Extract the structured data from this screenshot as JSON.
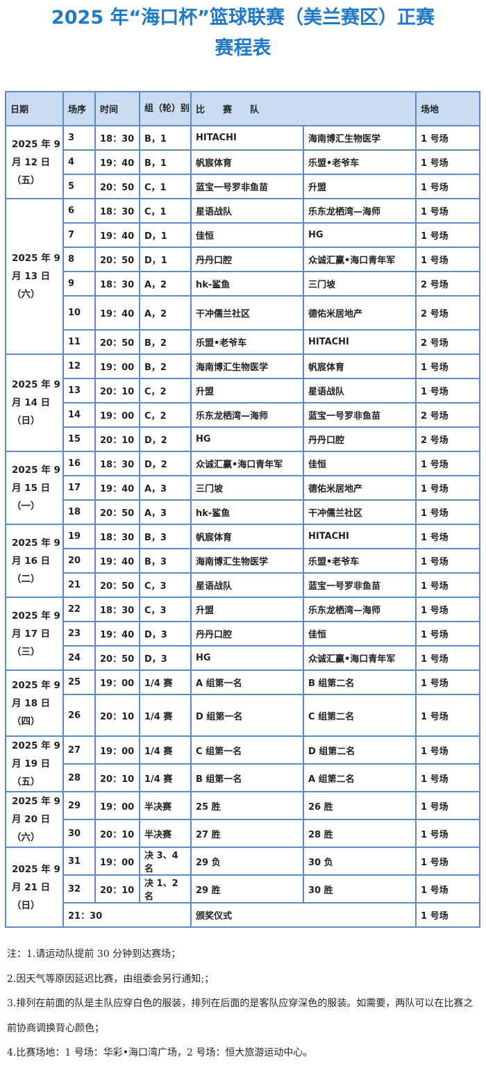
{
  "title": {
    "line1": "2025 年“海口杯”篮球联赛（美兰赛区）正赛",
    "line2": "赛程表"
  },
  "headers": {
    "date": "日期",
    "seq": "场序",
    "time": "时间",
    "group": "组（轮）别",
    "teams": "比　　赛　　队",
    "venue": "场地"
  },
  "days": [
    {
      "date": [
        "2025 年 9",
        "月 12 日",
        "（五）"
      ],
      "games": [
        [
          "3",
          "18：30",
          "B，1",
          "HITACHI",
          "海南博汇生物医学",
          "1 号场"
        ],
        [
          "4",
          "19：40",
          "B，1",
          "帆宸体育",
          "乐盟•老爷车",
          "1 号场"
        ],
        [
          "5",
          "20：50",
          "C，1",
          "蓝宝一号罗非鱼苗",
          "升盟",
          "1 号场"
        ]
      ]
    },
    {
      "date": [
        "2025 年 9",
        "月 13 日",
        "（六）"
      ],
      "games": [
        [
          "6",
          "18：30",
          "C，1",
          "星语战队",
          "乐东龙栖湾—海师",
          "1 号场"
        ],
        [
          "7",
          "19：40",
          "D，1",
          "佳恒",
          "HG",
          "1 号场"
        ],
        [
          "8",
          "20：50",
          "D，1",
          "丹丹口腔",
          "众诚汇赢•海口青年军",
          "1 号场"
        ],
        [
          "9",
          "18：30",
          "A，2",
          "hk-鲨鱼",
          "三门坡",
          "2 号场"
        ],
        [
          "10",
          "19：40",
          "A，2",
          "干冲儒兰社区",
          "德佑米居地产",
          "2 号场"
        ],
        [
          "11",
          "20：50",
          "B，2",
          "乐盟•老爷车",
          "HITACHI",
          "2 号场"
        ]
      ]
    },
    {
      "date": [
        "2025 年 9",
        "月 14 日",
        "（日）"
      ],
      "games": [
        [
          "12",
          "19：00",
          "B，2",
          "海南博汇生物医学",
          "帆宸体育",
          "1 号场"
        ],
        [
          "13",
          "20：10",
          "C，2",
          "升盟",
          "星语战队",
          "1 号场"
        ],
        [
          "14",
          "19：00",
          "C，2",
          "乐东龙栖湾—海师",
          "蓝宝一号罗非鱼苗",
          "2 号场"
        ],
        [
          "15",
          "20：10",
          "D，2",
          "HG",
          "丹丹口腔",
          "2 号场"
        ]
      ]
    },
    {
      "date": [
        "2025 年 9",
        "月 15 日",
        "（一）"
      ],
      "games": [
        [
          "16",
          "18：30",
          "D，2",
          "众诚汇赢•海口青年军",
          "佳恒",
          "1 号场"
        ],
        [
          "17",
          "19：40",
          "A，3",
          "三门坡",
          "德佑米居地产",
          "1 号场"
        ],
        [
          "18",
          "20：50",
          "A，3",
          "hk-鲨鱼",
          "干冲儒兰社区",
          "1 号场"
        ]
      ]
    },
    {
      "date": [
        "2025 年 9",
        "月 16 日",
        "（二）"
      ],
      "games": [
        [
          "19",
          "18：30",
          "B，3",
          "帆宸体育",
          "HITACHI",
          "1 号场"
        ],
        [
          "20",
          "19：40",
          "B，3",
          "海南博汇生物医学",
          "乐盟•老爷车",
          "1 号场"
        ],
        [
          "21",
          "20：50",
          "C，3",
          "星语战队",
          "蓝宝一号罗非鱼苗",
          "1 号场"
        ]
      ]
    },
    {
      "date": [
        "2025 年 9",
        "月 17 日",
        "（三）"
      ],
      "games": [
        [
          "22",
          "18：30",
          "C，3",
          "升盟",
          "乐东龙栖湾—海师",
          "1 号场"
        ],
        [
          "23",
          "19：40",
          "D，3",
          "丹丹口腔",
          "佳恒",
          "1 号场"
        ],
        [
          "24",
          "20：50",
          "D，3",
          "HG",
          "众诚汇赢•海口青年军",
          "1 号场"
        ]
      ]
    },
    {
      "date": [
        "2025 年 9",
        "月 18 日",
        "（四）"
      ],
      "games": [
        [
          "25",
          "19：00",
          "1/4 赛",
          "A 组第一名",
          "B 组第二名",
          "1 号场"
        ],
        [
          "26",
          "20：10",
          "1/4 赛",
          "D 组第一名",
          "C 组第二名",
          "1 号场"
        ]
      ]
    },
    {
      "date": [
        "2025 年 9",
        "月 19 日",
        "（五）"
      ],
      "games": [
        [
          "27",
          "19：00",
          "1/4 赛",
          "C 组第一名",
          "D 组第二名",
          "1 号场"
        ],
        [
          "28",
          "20：10",
          "1/4 赛",
          "B 组第一名",
          "A 组第二名",
          "1 号场"
        ]
      ]
    },
    {
      "date": [
        "2025 年 9",
        "月 20 日",
        "（六）"
      ],
      "games": [
        [
          "29",
          "19：00",
          "半决赛",
          "25 胜",
          "26 胜",
          "1 号场"
        ],
        [
          "30",
          "20：10",
          "半决赛",
          "27 胜",
          "28 胜",
          "1 号场"
        ]
      ]
    },
    {
      "date": [
        "2025 年 9",
        "月 21 日",
        "（日）"
      ],
      "games": [
        [
          "31",
          "19：00",
          "决 3、4 名",
          "29 负",
          "30 负",
          "1 号场"
        ],
        [
          "32",
          "20：10",
          "决 1、2 名",
          "29 胜",
          "30 胜",
          "1 号场"
        ]
      ]
    }
  ],
  "ceremony": {
    "time": "21：30",
    "event": "颁奖仪式",
    "venue": "1 号场"
  },
  "notes": [
    "注：1.请运动队提前 30 分钟到达赛场；",
    "2.因天气等原因延迟比赛，由组委会另行通知;；",
    "3.排列在前面的队是主队应穿白色的服装，排列在后面的是客队应穿深色的服装。如需要，两队可以在比赛之前协商调换背心颜色；",
    "4.比赛场地：1 号场：华彩•海口湾广场，2 号场：恒大旅游运动中心。"
  ],
  "colors": {
    "title": "#1f78c8",
    "header_bg": "#c9dcf1",
    "border": "#5b8ac4"
  }
}
